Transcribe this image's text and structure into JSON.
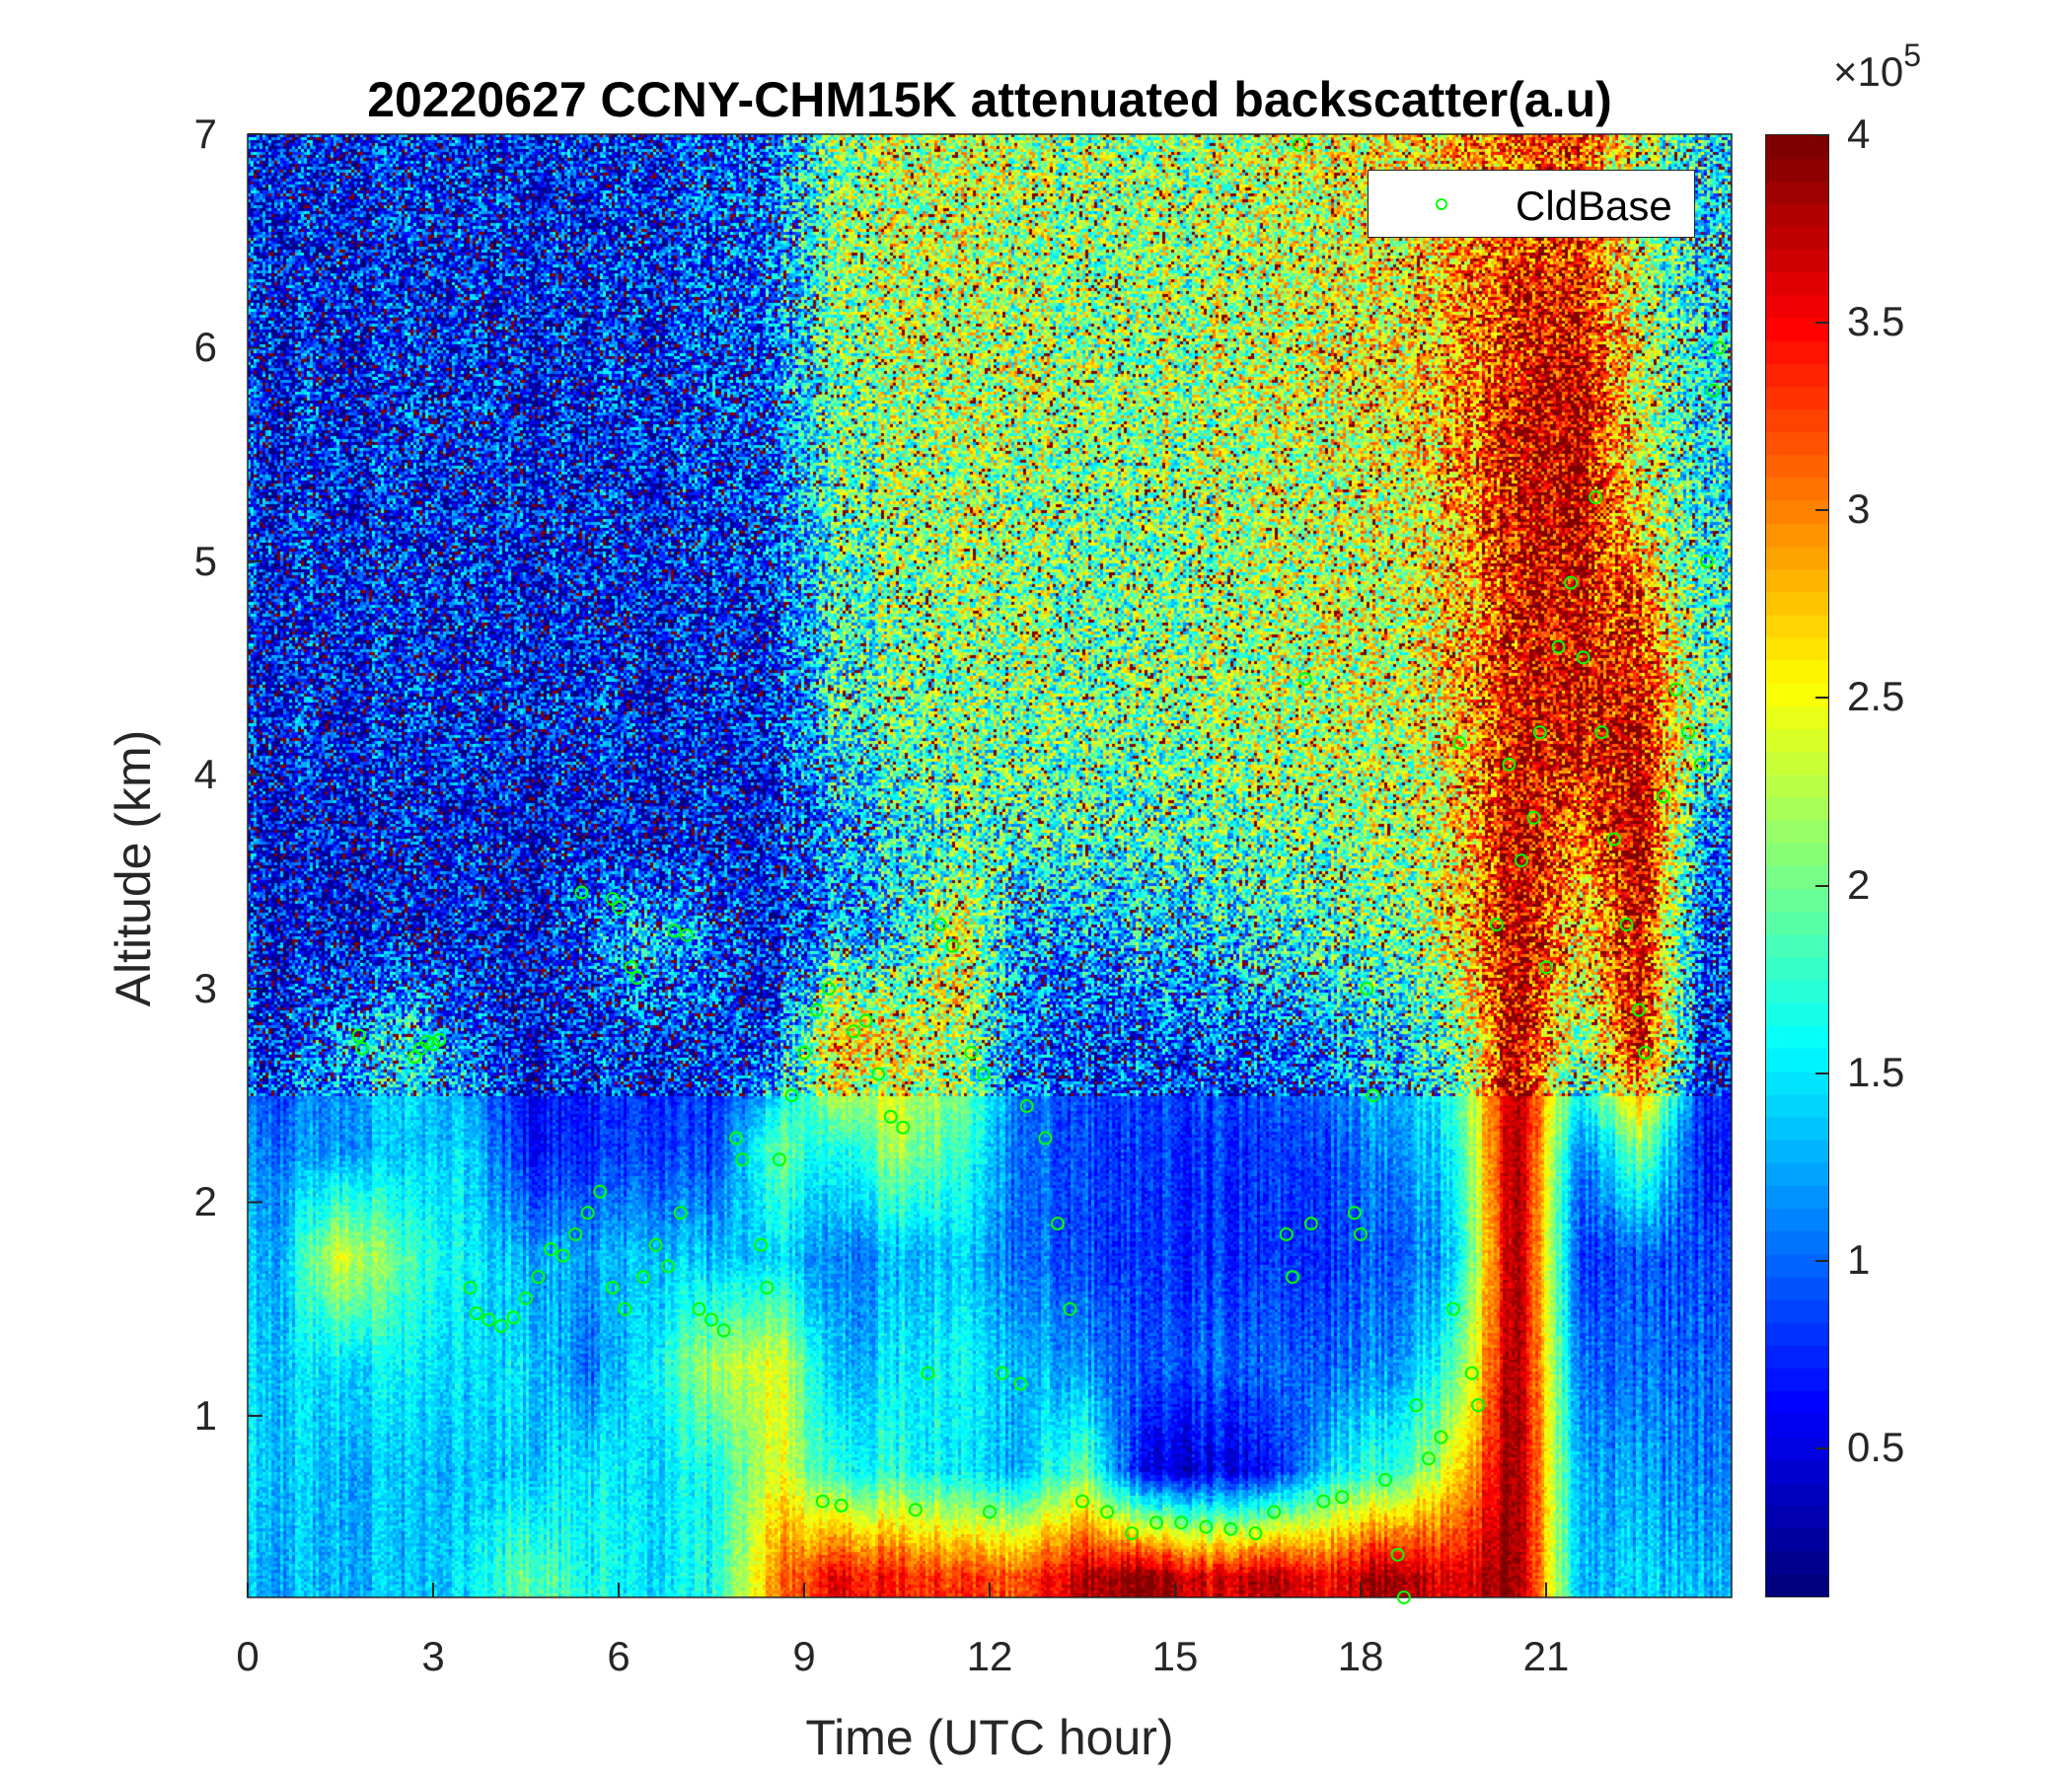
{
  "chart_data": {
    "type": "heatmap",
    "title": "20220627 CCNY-CHM15K attenuated backscatter(a.u)",
    "xlabel": "Time (UTC hour)",
    "ylabel": "Altitude (km)",
    "xlim": [
      0,
      24
    ],
    "ylim": [
      0.15,
      7
    ],
    "xticks": [
      0,
      3,
      6,
      9,
      12,
      15,
      18,
      21
    ],
    "yticks": [
      1,
      2,
      3,
      4,
      5,
      6,
      7
    ],
    "colormap": "jet",
    "colorbar": {
      "clim": [
        0.1,
        4
      ],
      "ticks": [
        0.5,
        1,
        1.5,
        2,
        2.5,
        3,
        3.5,
        4
      ],
      "tick_labels": [
        "0.5",
        "1",
        "1.5",
        "2",
        "2.5",
        "3",
        "3.5",
        "4"
      ],
      "exponent_label": "×10",
      "exponent": "5"
    },
    "grid": false,
    "legend": {
      "placement": "top-right",
      "entries": [
        "CldBase"
      ]
    },
    "heatmap": {
      "units": "×10^5 a.u.",
      "hour_centers": [
        0.5,
        1.5,
        2.5,
        3.5,
        4.5,
        5.5,
        6.5,
        7.5,
        8.5,
        9.5,
        10.5,
        11.5,
        12.5,
        13.5,
        14.5,
        15.5,
        16.5,
        17.5,
        18.5,
        19.5,
        20.5,
        21.5,
        22.5,
        23.5
      ],
      "altitude_centers_km": [
        0.25,
        0.75,
        1.25,
        1.75,
        2.25,
        2.75,
        3.25,
        3.75,
        4.25,
        4.75,
        5.25,
        5.75,
        6.25,
        6.75
      ],
      "values": [
        [
          1.3,
          1.3,
          1.3,
          1.4,
          2.0,
          1.6,
          1.5,
          1.6,
          3.0,
          3.5,
          3.4,
          3.3,
          3.2,
          3.8,
          4.0,
          3.6,
          3.8,
          3.5,
          4.0,
          3.5,
          4.0,
          1.3,
          1.4,
          1.3
        ],
        [
          1.4,
          1.3,
          1.3,
          1.3,
          1.4,
          1.5,
          1.5,
          1.6,
          2.5,
          1.6,
          1.7,
          1.5,
          1.3,
          2.0,
          0.5,
          0.5,
          0.6,
          1.5,
          1.8,
          2.5,
          4.0,
          1.2,
          1.2,
          1.1
        ],
        [
          1.4,
          1.5,
          1.5,
          1.4,
          1.5,
          1.0,
          1.6,
          2.2,
          2.5,
          1.2,
          1.5,
          1.6,
          1.3,
          1.2,
          0.9,
          1.0,
          1.0,
          1.0,
          1.2,
          1.8,
          4.0,
          1.0,
          1.0,
          1.0
        ],
        [
          1.3,
          2.5,
          1.8,
          1.5,
          1.3,
          1.2,
          1.4,
          1.3,
          1.5,
          1.0,
          1.3,
          1.4,
          1.0,
          0.9,
          0.8,
          0.8,
          0.8,
          0.8,
          1.0,
          1.3,
          4.0,
          0.8,
          0.9,
          0.9
        ],
        [
          1.1,
          1.2,
          1.3,
          1.4,
          0.7,
          0.7,
          0.9,
          0.8,
          2.0,
          1.5,
          2.2,
          1.8,
          1.0,
          0.9,
          0.8,
          0.8,
          0.8,
          0.9,
          1.2,
          1.5,
          4.0,
          1.0,
          2.0,
          0.7
        ],
        [
          0.8,
          1.2,
          1.5,
          1.0,
          0.6,
          0.7,
          0.8,
          0.7,
          0.9,
          2.8,
          2.5,
          2.2,
          1.0,
          0.9,
          0.9,
          1.0,
          1.0,
          1.2,
          1.5,
          1.8,
          3.8,
          2.0,
          3.5,
          0.8
        ],
        [
          0.6,
          0.6,
          0.6,
          0.6,
          0.6,
          1.0,
          1.5,
          1.0,
          0.7,
          1.2,
          1.5,
          2.5,
          1.2,
          1.3,
          1.4,
          1.5,
          1.6,
          1.8,
          2.0,
          2.5,
          3.8,
          2.5,
          3.5,
          1.0
        ],
        [
          0.6,
          0.6,
          0.6,
          0.6,
          0.6,
          0.6,
          0.6,
          0.6,
          0.7,
          1.2,
          1.6,
          1.8,
          1.8,
          1.8,
          1.8,
          1.9,
          2.0,
          2.0,
          2.2,
          2.5,
          3.8,
          3.0,
          3.8,
          1.2
        ],
        [
          0.7,
          0.7,
          0.7,
          0.7,
          0.7,
          0.7,
          0.7,
          0.7,
          0.8,
          1.6,
          1.9,
          2.0,
          2.0,
          2.0,
          2.0,
          2.1,
          2.2,
          2.3,
          2.3,
          2.6,
          3.5,
          3.6,
          3.6,
          2.0
        ],
        [
          0.7,
          0.7,
          0.7,
          0.7,
          0.7,
          0.7,
          0.7,
          0.7,
          0.9,
          1.7,
          2.0,
          2.1,
          2.1,
          2.0,
          2.0,
          2.1,
          2.2,
          2.3,
          2.4,
          2.6,
          3.5,
          3.6,
          3.2,
          1.8
        ],
        [
          0.7,
          0.7,
          0.7,
          0.7,
          0.7,
          0.7,
          0.7,
          0.8,
          1.0,
          1.8,
          2.1,
          2.2,
          2.1,
          2.0,
          2.0,
          2.1,
          2.2,
          2.3,
          2.4,
          2.7,
          3.6,
          3.7,
          2.5,
          1.6
        ],
        [
          0.7,
          0.7,
          0.7,
          0.7,
          0.7,
          0.7,
          0.8,
          0.8,
          1.0,
          1.9,
          2.2,
          2.2,
          2.2,
          2.1,
          2.1,
          2.2,
          2.3,
          2.4,
          2.5,
          2.8,
          3.6,
          3.8,
          2.3,
          1.5
        ],
        [
          0.7,
          0.7,
          0.7,
          0.7,
          0.7,
          0.7,
          0.8,
          0.9,
          1.1,
          2.0,
          2.3,
          2.3,
          2.2,
          2.1,
          2.1,
          2.2,
          2.3,
          2.4,
          2.5,
          2.8,
          3.4,
          3.5,
          2.2,
          1.5
        ],
        [
          0.7,
          0.7,
          0.7,
          0.7,
          0.7,
          0.7,
          0.8,
          0.9,
          1.1,
          2.0,
          2.3,
          2.3,
          2.2,
          2.1,
          2.1,
          2.2,
          2.3,
          2.4,
          2.5,
          2.8,
          3.2,
          3.2,
          2.2,
          1.5
        ]
      ]
    },
    "series": [
      {
        "name": "CldBase",
        "type": "scatter",
        "marker": "open-circle",
        "color": "#00ff00",
        "points": [
          [
            1.8,
            2.78
          ],
          [
            1.85,
            2.72
          ],
          [
            2.7,
            2.68
          ],
          [
            2.8,
            2.72
          ],
          [
            2.9,
            2.75
          ],
          [
            3.0,
            2.74
          ],
          [
            3.1,
            2.76
          ],
          [
            3.6,
            1.6
          ],
          [
            3.7,
            1.48
          ],
          [
            3.9,
            1.45
          ],
          [
            4.1,
            1.42
          ],
          [
            4.3,
            1.46
          ],
          [
            4.5,
            1.55
          ],
          [
            4.7,
            1.65
          ],
          [
            4.9,
            1.78
          ],
          [
            5.1,
            1.75
          ],
          [
            5.3,
            1.85
          ],
          [
            5.5,
            1.95
          ],
          [
            5.7,
            2.05
          ],
          [
            5.9,
            1.6
          ],
          [
            6.1,
            1.5
          ],
          [
            5.4,
            3.45
          ],
          [
            5.9,
            3.42
          ],
          [
            6.0,
            3.38
          ],
          [
            6.2,
            3.1
          ],
          [
            6.3,
            3.05
          ],
          [
            6.4,
            1.65
          ],
          [
            6.6,
            1.8
          ],
          [
            6.8,
            1.7
          ],
          [
            7.0,
            1.95
          ],
          [
            6.9,
            3.27
          ],
          [
            7.1,
            3.25
          ],
          [
            7.3,
            1.5
          ],
          [
            7.5,
            1.45
          ],
          [
            7.7,
            1.4
          ],
          [
            7.9,
            2.3
          ],
          [
            8.0,
            2.2
          ],
          [
            8.3,
            1.8
          ],
          [
            8.4,
            1.6
          ],
          [
            8.6,
            2.2
          ],
          [
            8.8,
            2.5
          ],
          [
            9.0,
            2.7
          ],
          [
            9.2,
            2.9
          ],
          [
            9.4,
            3.0
          ],
          [
            9.3,
            0.6
          ],
          [
            9.6,
            0.58
          ],
          [
            9.8,
            2.8
          ],
          [
            10.0,
            2.85
          ],
          [
            10.2,
            2.6
          ],
          [
            10.4,
            2.4
          ],
          [
            10.6,
            2.35
          ],
          [
            10.8,
            0.56
          ],
          [
            11.0,
            1.2
          ],
          [
            11.2,
            3.3
          ],
          [
            11.4,
            3.2
          ],
          [
            11.7,
            2.7
          ],
          [
            11.9,
            2.6
          ],
          [
            12.0,
            0.55
          ],
          [
            12.2,
            1.2
          ],
          [
            12.5,
            1.15
          ],
          [
            12.6,
            2.45
          ],
          [
            12.9,
            2.3
          ],
          [
            13.1,
            1.9
          ],
          [
            13.3,
            1.5
          ],
          [
            13.5,
            0.6
          ],
          [
            13.9,
            0.55
          ],
          [
            14.3,
            0.45
          ],
          [
            14.7,
            0.5
          ],
          [
            15.1,
            0.5
          ],
          [
            15.5,
            0.48
          ],
          [
            15.9,
            0.47
          ],
          [
            16.3,
            0.45
          ],
          [
            16.6,
            0.55
          ],
          [
            16.8,
            1.85
          ],
          [
            16.9,
            1.65
          ],
          [
            17.1,
            4.45
          ],
          [
            17.0,
            6.95
          ],
          [
            17.2,
            1.9
          ],
          [
            17.4,
            0.6
          ],
          [
            17.7,
            0.62
          ],
          [
            17.9,
            1.95
          ],
          [
            18.0,
            1.85
          ],
          [
            18.1,
            3.0
          ],
          [
            18.2,
            2.5
          ],
          [
            18.4,
            0.7
          ],
          [
            18.6,
            0.35
          ],
          [
            18.7,
            0.15
          ],
          [
            18.9,
            1.05
          ],
          [
            19.1,
            0.8
          ],
          [
            19.3,
            0.9
          ],
          [
            19.5,
            1.5
          ],
          [
            19.6,
            4.15
          ],
          [
            19.8,
            1.2
          ],
          [
            19.9,
            1.05
          ],
          [
            20.2,
            3.3
          ],
          [
            20.4,
            4.05
          ],
          [
            20.6,
            3.6
          ],
          [
            20.8,
            3.8
          ],
          [
            20.9,
            4.2
          ],
          [
            21.0,
            3.1
          ],
          [
            21.2,
            4.6
          ],
          [
            21.4,
            4.9
          ],
          [
            21.6,
            4.55
          ],
          [
            21.8,
            5.3
          ],
          [
            21.9,
            4.2
          ],
          [
            22.1,
            3.7
          ],
          [
            22.3,
            3.3
          ],
          [
            22.5,
            2.9
          ],
          [
            22.6,
            2.7
          ],
          [
            22.9,
            3.9
          ],
          [
            23.1,
            4.4
          ],
          [
            23.3,
            4.2
          ],
          [
            23.5,
            4.05
          ],
          [
            23.6,
            5.0
          ],
          [
            23.7,
            5.8
          ],
          [
            23.8,
            6.0
          ]
        ]
      }
    ]
  }
}
